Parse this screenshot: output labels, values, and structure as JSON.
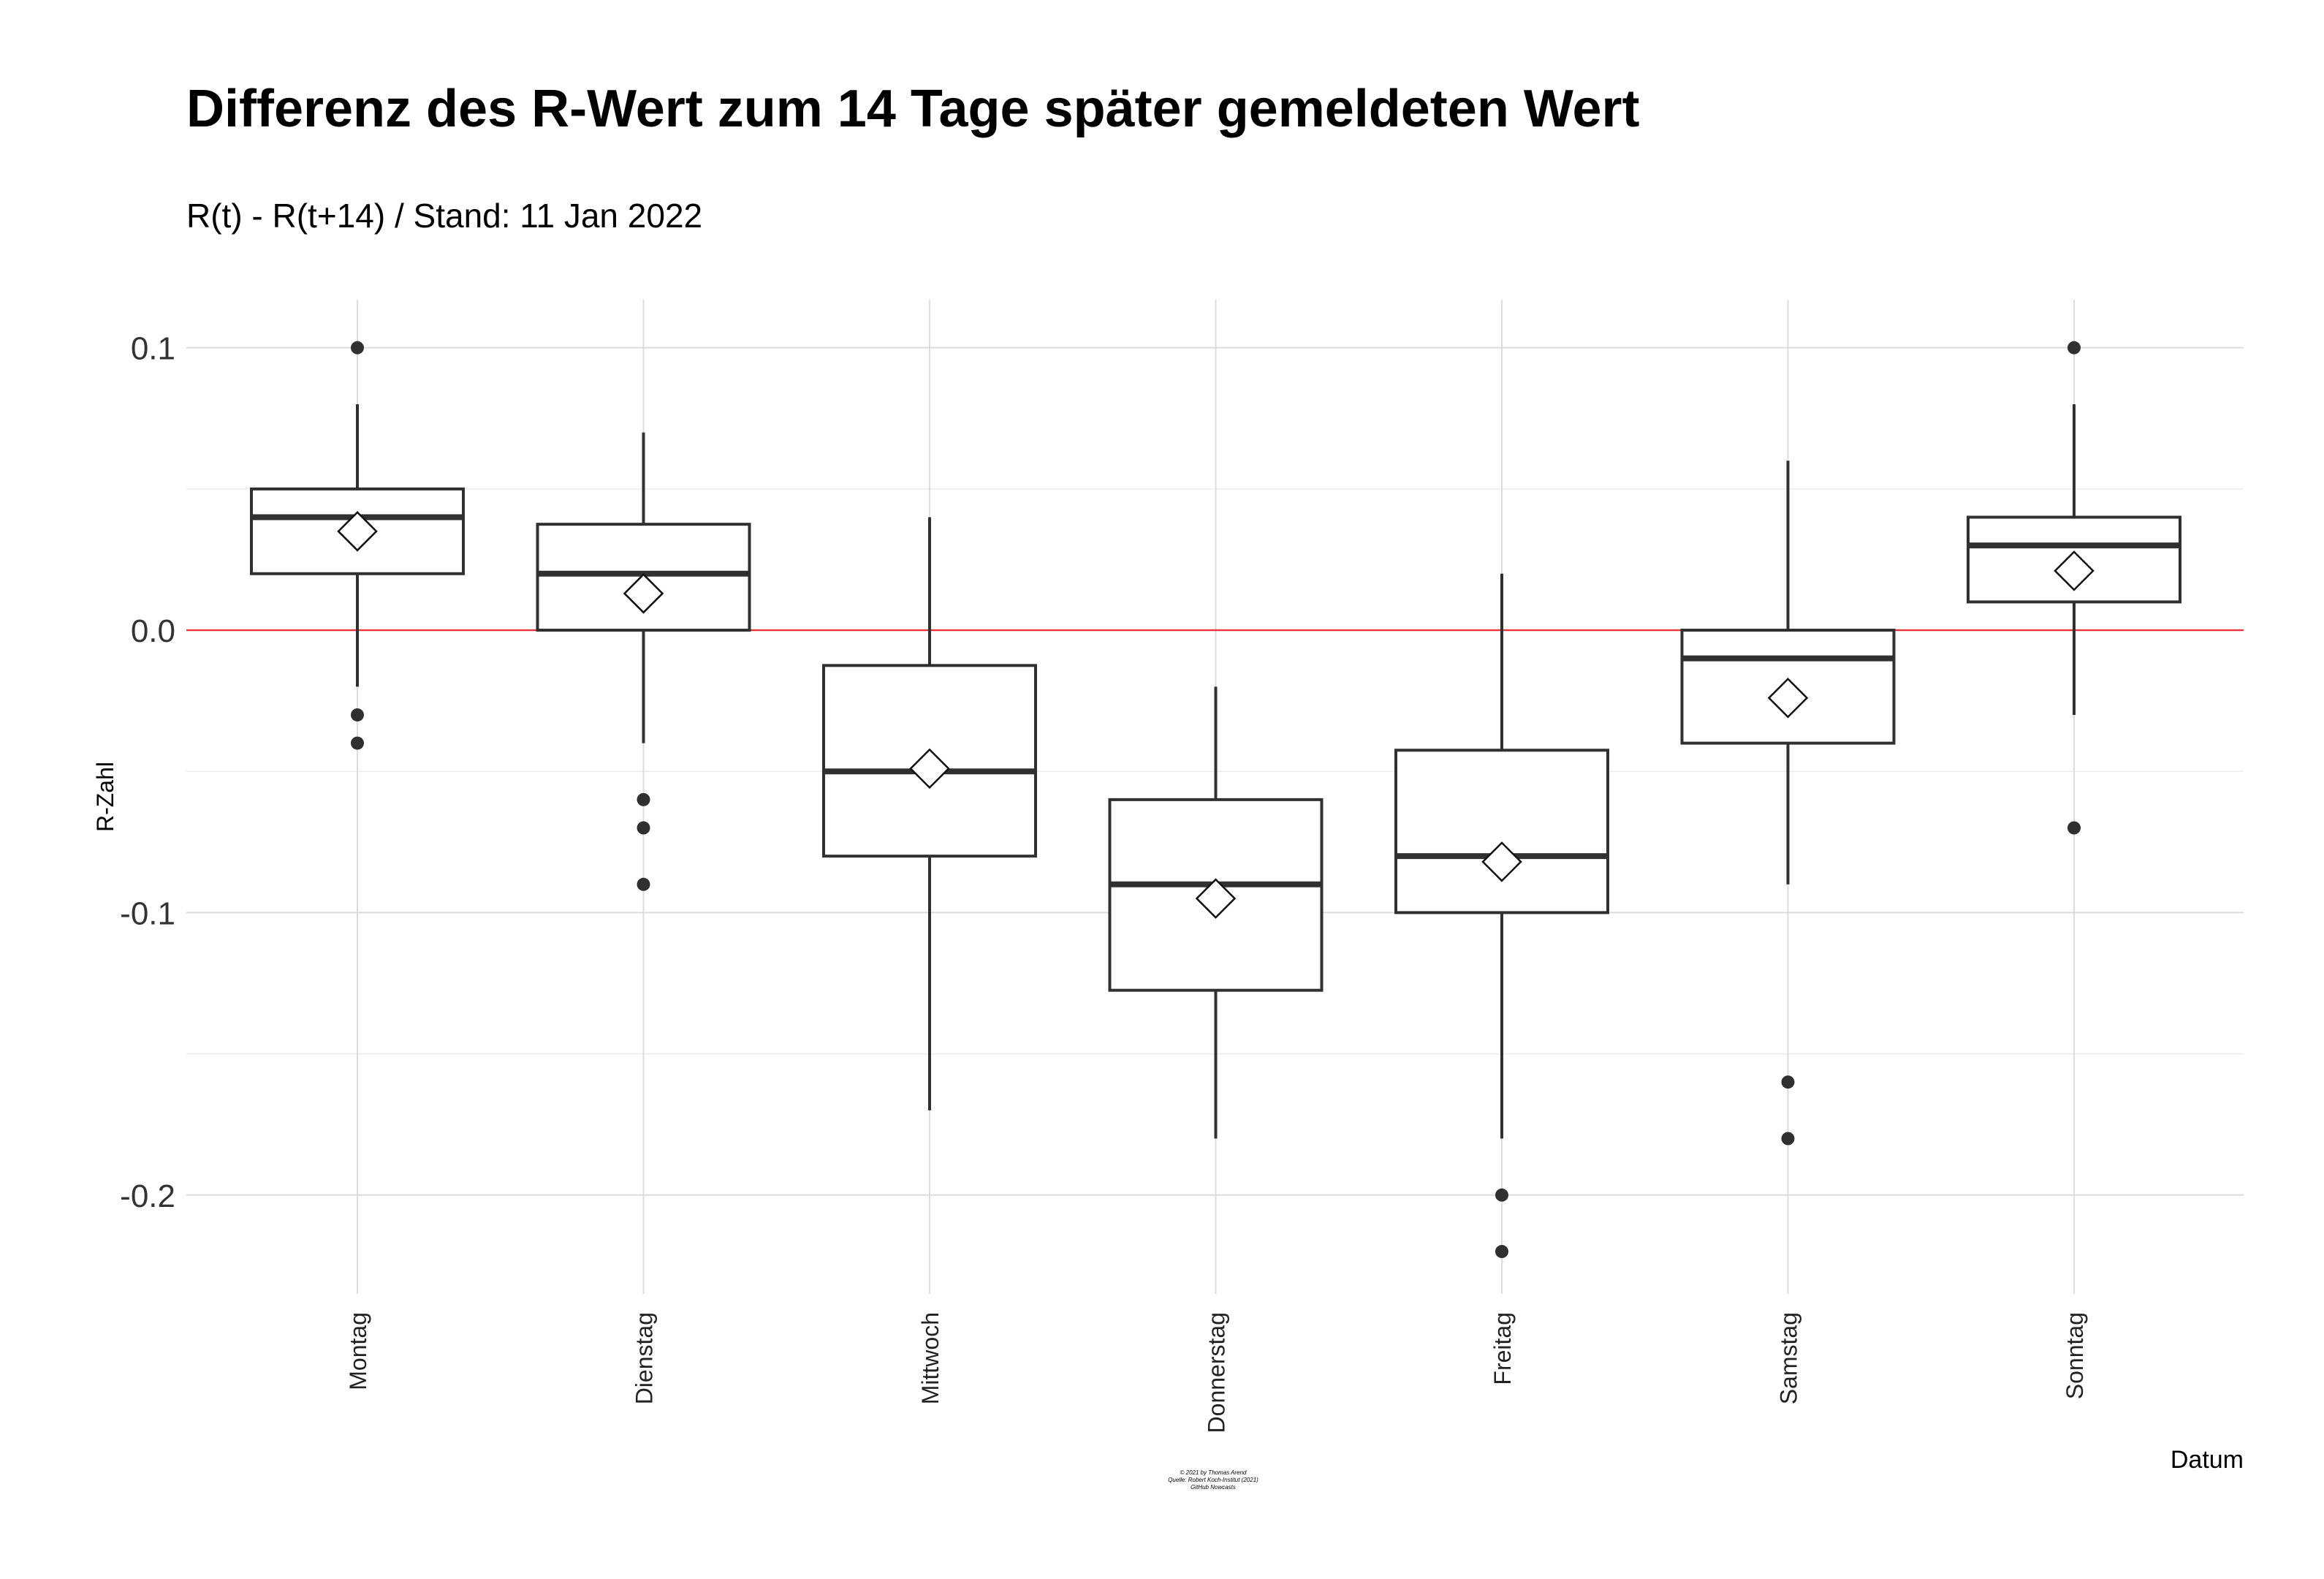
{
  "chart_data": {
    "type": "boxplot",
    "title": "Differenz des R-Wert zum 14 Tage später gemeldeten Wert",
    "subtitle": "R(t) - R(t+14) / Stand: 11 Jan 2022",
    "xlabel": "Datum",
    "ylabel": "R-Zahl",
    "ylim": [
      -0.235,
      0.117
    ],
    "yticks": [
      0.1,
      0.0,
      -0.1,
      -0.2
    ],
    "ytick_labels": [
      "0.1",
      "0.0",
      "-0.1",
      "-0.2"
    ],
    "grid": true,
    "reference_line": {
      "y": 0.0,
      "color": "#e8333f"
    },
    "categories": [
      "Montag",
      "Dienstag",
      "Mittwoch",
      "Donnerstag",
      "Freitag",
      "Samstag",
      "Sonntag"
    ],
    "boxes": [
      {
        "category": "Montag",
        "whisker_low": -0.02,
        "q1": 0.02,
        "median": 0.04,
        "q3": 0.05,
        "whisker_high": 0.08,
        "mean": 0.035,
        "outliers": [
          0.1,
          -0.03,
          -0.04
        ]
      },
      {
        "category": "Dienstag",
        "whisker_low": -0.04,
        "q1": 0.0,
        "median": 0.02,
        "q3": 0.0375,
        "whisker_high": 0.07,
        "mean": 0.013,
        "outliers": [
          -0.06,
          -0.07,
          -0.09
        ]
      },
      {
        "category": "Mittwoch",
        "whisker_low": -0.17,
        "q1": -0.08,
        "median": -0.05,
        "q3": -0.0125,
        "whisker_high": 0.04,
        "mean": -0.049,
        "outliers": []
      },
      {
        "category": "Donnerstag",
        "whisker_low": -0.18,
        "q1": -0.1275,
        "median": -0.09,
        "q3": -0.06,
        "whisker_high": -0.02,
        "mean": -0.095,
        "outliers": []
      },
      {
        "category": "Freitag",
        "whisker_low": -0.18,
        "q1": -0.1,
        "median": -0.08,
        "q3": -0.0425,
        "whisker_high": 0.02,
        "mean": -0.082,
        "outliers": [
          -0.2,
          -0.22
        ]
      },
      {
        "category": "Samstag",
        "whisker_low": -0.09,
        "q1": -0.04,
        "median": -0.01,
        "q3": 0.0,
        "whisker_high": 0.06,
        "mean": -0.024,
        "outliers": [
          -0.16,
          -0.18
        ]
      },
      {
        "category": "Sonntag",
        "whisker_low": -0.03,
        "q1": 0.01,
        "median": 0.03,
        "q3": 0.04,
        "whisker_high": 0.08,
        "mean": 0.021,
        "outliers": [
          0.1,
          -0.07
        ]
      }
    ],
    "caption": [
      "© 2021 by Thomas Arend",
      "Quelle: Robert Koch-Institut (2021)",
      "GitHub Nowcasts"
    ]
  }
}
